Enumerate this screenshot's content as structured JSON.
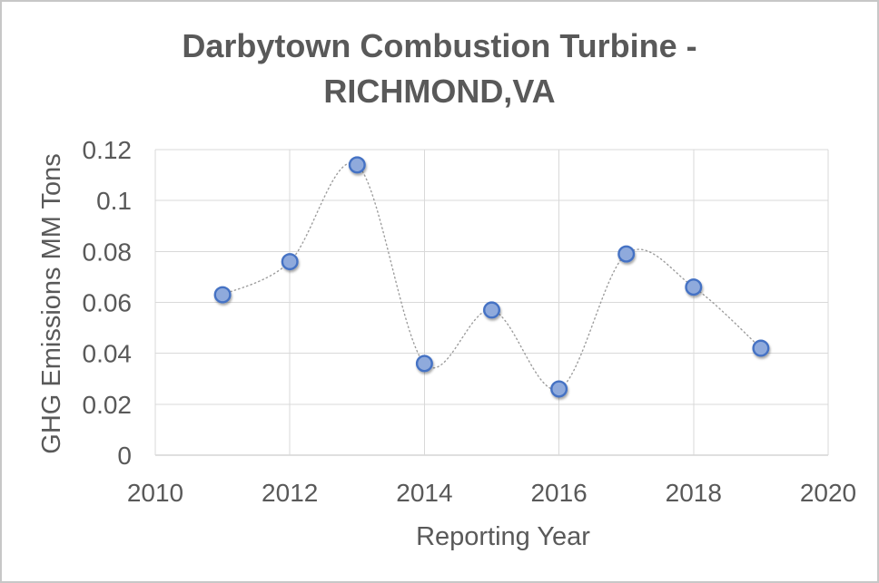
{
  "chart_data": {
    "type": "scatter",
    "title_line1": "Darbytown Combustion Turbine -",
    "title_line2": "RICHMOND,VA",
    "xlabel": "Reporting Year",
    "ylabel": "GHG Emissions MM Tons",
    "x": [
      2011,
      2012,
      2013,
      2014,
      2015,
      2016,
      2017,
      2018,
      2019
    ],
    "y": [
      0.063,
      0.076,
      0.114,
      0.036,
      0.057,
      0.026,
      0.079,
      0.066,
      0.042
    ],
    "xlim": [
      2010,
      2020
    ],
    "ylim": [
      0,
      0.12
    ],
    "x_tick_values": [
      2010,
      2012,
      2014,
      2016,
      2018,
      2020
    ],
    "x_tick_labels": [
      "2010",
      "2012",
      "2014",
      "2016",
      "2018",
      "2020"
    ],
    "y_tick_values": [
      0,
      0.02,
      0.04,
      0.06,
      0.08,
      0.1,
      0.12
    ],
    "y_tick_labels": [
      "0",
      "0.02",
      "0.04",
      "0.06",
      "0.08",
      "0.1",
      "0.12"
    ],
    "grid": true,
    "legend": false,
    "line_style": "dotted",
    "line_color": "#9d9d9d",
    "marker_fill": "#8faadc",
    "marker_stroke": "#4472c4",
    "gridline_color": "#d9d9d9",
    "axis_line_color": "#bfbfbf",
    "text_color": "#595959",
    "title_color": "#595959",
    "background_color": "#ffffff",
    "frame_border_color": "#c7c7c7"
  }
}
